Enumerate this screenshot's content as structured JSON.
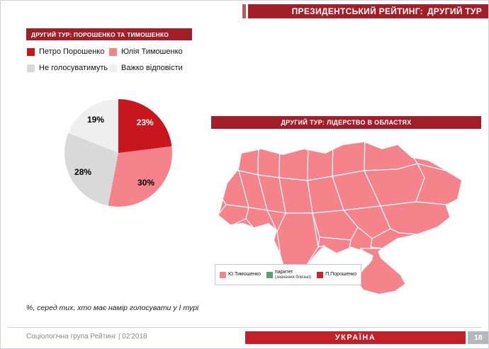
{
  "header": {
    "title_prefix": "ПРЕЗИДЕНТСЬКИЙ РЕЙТИНГ:",
    "title_emphasis": "ДРУГИЙ ТУР"
  },
  "pie_panel": {
    "title": "ДРУГИЙ ТУР: ПОРОШЕНКО ТА ТИМОШЕНКО"
  },
  "map_panel": {
    "title": "ДРУГИЙ ТУР: ЛІДЕРСТВО В ОБЛАСТЯХ",
    "legend_order": [
      "tymoshenko",
      "parity",
      "poroshenko"
    ],
    "categories": {
      "tymoshenko": {
        "label": "Ю.Тимошенко",
        "sublabel": "",
        "color": "#f4838c",
        "regions": [
          "volyn",
          "zhytomyr",
          "kyiv",
          "chernihiv",
          "sumy",
          "lviv",
          "ternopil",
          "vinnytsia",
          "cherkasy",
          "poltava",
          "kharkiv",
          "zakarpattia",
          "odesa",
          "mykolaiv",
          "dnipro",
          "zaporizhzhia",
          "kherson"
        ]
      },
      "parity": {
        "label": "паритет",
        "sublabel": "(значення близькі)",
        "color": "#57a46b",
        "regions": [
          "rivne",
          "kirovohrad",
          "donetsk"
        ]
      },
      "poroshenko": {
        "label": "П.Порошенко",
        "sublabel": "",
        "color": "#c9252e",
        "regions": [
          "khmelnytskyi",
          "chernivtsi"
        ]
      },
      "no_data": {
        "label": "",
        "sublabel": "",
        "color": "#c6c6c6",
        "regions": [
          "luhansk",
          "crimea"
        ]
      }
    }
  },
  "footnote": "%, серед тих, хто має намір голосувати у І турі",
  "footer": {
    "source": "Соціологічна група Рейтинг  |  02'2018",
    "country": "УКРАЇНА",
    "page_number": "18"
  },
  "chart_data": [
    {
      "type": "pie",
      "title": "ДРУГИЙ ТУР: ПОРОШЕНКО ТА ТИМОШЕНКО",
      "labels": [
        "Петро Порошенко",
        "Юлія Тимошенко",
        "Не голосуватимуть",
        "Важко відповісти"
      ],
      "values": [
        23,
        30,
        28,
        19
      ],
      "unit": "%",
      "colors": [
        "#c9161e",
        "#f4838c",
        "#d9d9d9",
        "#efefef"
      ],
      "note": "%, серед тих, хто має намір голосувати у І турі",
      "legend_position": "above-left"
    },
    {
      "type": "heatmap",
      "subtype": "choropleth-map",
      "title": "ДРУГИЙ ТУР: ЛІДЕРСТВО В ОБЛАСТЯХ",
      "legend": [
        "Ю.Тимошенко",
        "паритет (значення близькі)",
        "П.Порошенко"
      ],
      "note": "regions shaded by second-round leader; occupied territories shown in gray"
    }
  ]
}
